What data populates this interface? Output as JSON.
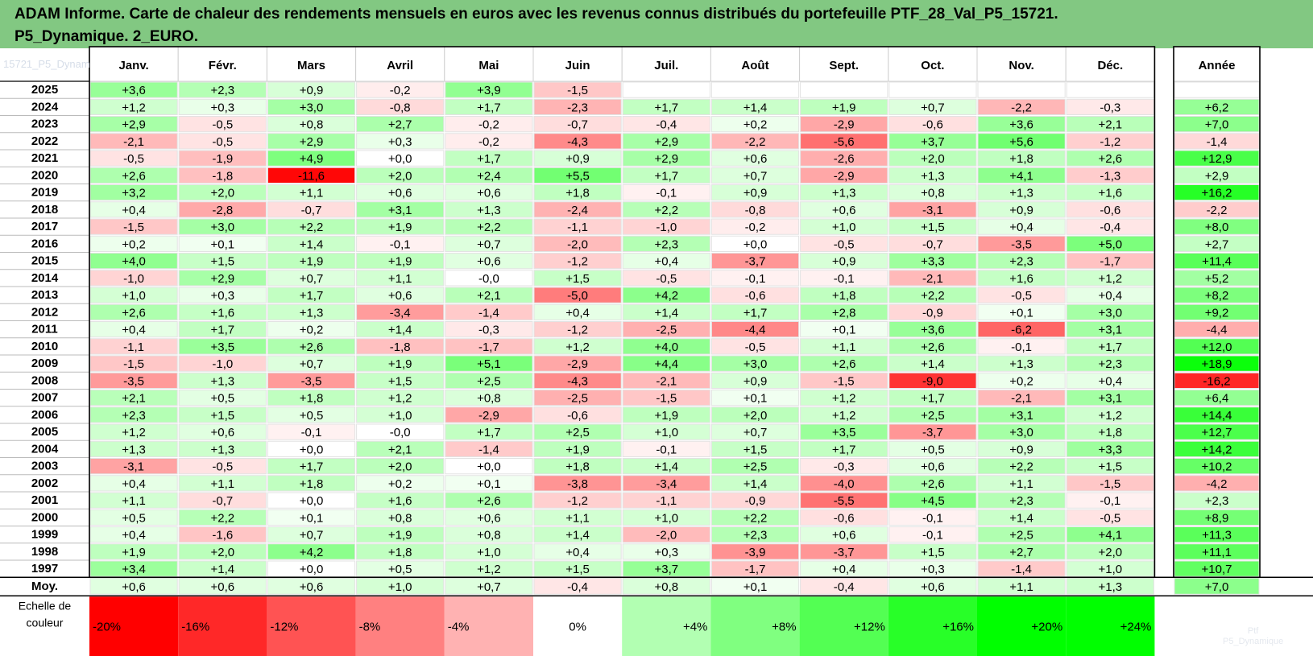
{
  "title": {
    "line1": "ADAM Informe. Carte de chaleur des rendements mensuels en euros avec les revenus connus distribués du portefeuille PTF_28_Val_P5_15721.",
    "line2": "P5_Dynamique. 2_EURO."
  },
  "watermark": "15721_P5_Dynam",
  "watermark2": [
    "Ptf",
    "P5_Dynamique"
  ],
  "chart_data": {
    "type": "heatmap",
    "columns": [
      "Janv.",
      "Févr.",
      "Mars",
      "Avril",
      "Mai",
      "Juin",
      "Juil.",
      "Août",
      "Sept.",
      "Oct.",
      "Nov.",
      "Déc."
    ],
    "annual_label": "Année",
    "rows": [
      {
        "year": "2025",
        "months": [
          "+3,6",
          "+2,3",
          "+0,9",
          "-0,2",
          "+3,9",
          "-1,5",
          "",
          "",
          "",
          "",
          "",
          ""
        ],
        "annual": ""
      },
      {
        "year": "2024",
        "months": [
          "+1,2",
          "+0,3",
          "+3,0",
          "-0,8",
          "+1,7",
          "-2,3",
          "+1,7",
          "+1,4",
          "+1,9",
          "+0,7",
          "-2,2",
          "-0,3"
        ],
        "annual": "+6,2"
      },
      {
        "year": "2023",
        "months": [
          "+2,9",
          "-0,5",
          "+0,8",
          "+2,7",
          "-0,2",
          "-0,7",
          "-0,4",
          "+0,2",
          "-2,9",
          "-0,6",
          "+3,6",
          "+2,1"
        ],
        "annual": "+7,0"
      },
      {
        "year": "2022",
        "months": [
          "-2,1",
          "-0,5",
          "+2,9",
          "+0,3",
          "-0,2",
          "-4,3",
          "+2,9",
          "-2,2",
          "-5,6",
          "+3,7",
          "+5,6",
          "-1,2"
        ],
        "annual": "-1,4"
      },
      {
        "year": "2021",
        "months": [
          "-0,5",
          "-1,9",
          "+4,9",
          "+0,0",
          "+1,7",
          "+0,9",
          "+2,9",
          "+0,6",
          "-2,6",
          "+2,0",
          "+1,8",
          "+2,6"
        ],
        "annual": "+12,9"
      },
      {
        "year": "2020",
        "months": [
          "+2,6",
          "-1,8",
          "-11,6",
          "+2,0",
          "+2,4",
          "+5,5",
          "+1,7",
          "+0,7",
          "-2,9",
          "+1,3",
          "+4,1",
          "-1,3"
        ],
        "annual": "+2,9"
      },
      {
        "year": "2019",
        "months": [
          "+3,2",
          "+2,0",
          "+1,1",
          "+0,6",
          "+0,6",
          "+1,8",
          "-0,1",
          "+0,9",
          "+1,3",
          "+0,8",
          "+1,3",
          "+1,6"
        ],
        "annual": "+16,2"
      },
      {
        "year": "2018",
        "months": [
          "+0,4",
          "-2,8",
          "-0,7",
          "+3,1",
          "+1,3",
          "-2,4",
          "+2,2",
          "-0,8",
          "+0,6",
          "-3,1",
          "+0,9",
          "-0,6"
        ],
        "annual": "-2,2"
      },
      {
        "year": "2017",
        "months": [
          "-1,5",
          "+3,0",
          "+2,2",
          "+1,9",
          "+2,2",
          "-1,1",
          "-1,0",
          "-0,2",
          "+1,0",
          "+1,5",
          "+0,4",
          "-0,4"
        ],
        "annual": "+8,0"
      },
      {
        "year": "2016",
        "months": [
          "+0,2",
          "+0,1",
          "+1,4",
          "-0,1",
          "+0,7",
          "-2,0",
          "+2,3",
          "+0,0",
          "-0,5",
          "-0,7",
          "-3,5",
          "+5,0"
        ],
        "annual": "+2,7"
      },
      {
        "year": "2015",
        "months": [
          "+4,0",
          "+1,5",
          "+1,9",
          "+1,9",
          "+0,6",
          "-1,2",
          "+0,4",
          "-3,7",
          "+0,9",
          "+3,3",
          "+2,3",
          "-1,7"
        ],
        "annual": "+11,4"
      },
      {
        "year": "2014",
        "months": [
          "-1,0",
          "+2,9",
          "+0,7",
          "+1,1",
          "-0,0",
          "+1,5",
          "-0,5",
          "-0,1",
          "-0,1",
          "-2,1",
          "+1,6",
          "+1,2"
        ],
        "annual": "+5,2"
      },
      {
        "year": "2013",
        "months": [
          "+1,0",
          "+0,3",
          "+1,7",
          "+0,6",
          "+2,1",
          "-5,0",
          "+4,2",
          "-0,6",
          "+1,8",
          "+2,2",
          "-0,5",
          "+0,4"
        ],
        "annual": "+8,2"
      },
      {
        "year": "2012",
        "months": [
          "+2,6",
          "+1,6",
          "+1,3",
          "-3,4",
          "-1,4",
          "+0,4",
          "+1,4",
          "+1,7",
          "+2,8",
          "-0,9",
          "+0,1",
          "+3,0"
        ],
        "annual": "+9,2"
      },
      {
        "year": "2011",
        "months": [
          "+0,4",
          "+1,7",
          "+0,2",
          "+1,4",
          "-0,3",
          "-1,2",
          "-2,5",
          "-4,4",
          "+0,1",
          "+3,6",
          "-6,2",
          "+3,1"
        ],
        "annual": "-4,4"
      },
      {
        "year": "2010",
        "months": [
          "-1,1",
          "+3,5",
          "+2,6",
          "-1,8",
          "-1,7",
          "+1,2",
          "+4,0",
          "-0,5",
          "+1,1",
          "+2,6",
          "-0,1",
          "+1,7"
        ],
        "annual": "+12,0"
      },
      {
        "year": "2009",
        "months": [
          "-1,5",
          "-1,0",
          "+0,7",
          "+1,9",
          "+5,1",
          "-2,9",
          "+4,4",
          "+3,0",
          "+2,6",
          "+1,4",
          "+1,3",
          "+2,3"
        ],
        "annual": "+18,9"
      },
      {
        "year": "2008",
        "months": [
          "-3,5",
          "+1,3",
          "-3,5",
          "+1,5",
          "+2,5",
          "-4,3",
          "-2,1",
          "+0,9",
          "-1,5",
          "-9,0",
          "+0,2",
          "+0,4"
        ],
        "annual": "-16,2"
      },
      {
        "year": "2007",
        "months": [
          "+2,1",
          "+0,5",
          "+1,8",
          "+1,2",
          "+0,8",
          "-2,5",
          "-1,5",
          "+0,1",
          "+1,2",
          "+1,7",
          "-2,1",
          "+3,1"
        ],
        "annual": "+6,4"
      },
      {
        "year": "2006",
        "months": [
          "+2,3",
          "+1,5",
          "+0,5",
          "+1,0",
          "-2,9",
          "-0,6",
          "+1,9",
          "+2,0",
          "+1,2",
          "+2,5",
          "+3,1",
          "+1,2"
        ],
        "annual": "+14,4"
      },
      {
        "year": "2005",
        "months": [
          "+1,2",
          "+0,6",
          "-0,1",
          "-0,0",
          "+1,7",
          "+2,5",
          "+1,0",
          "+0,7",
          "+3,5",
          "-3,7",
          "+3,0",
          "+1,8"
        ],
        "annual": "+12,7"
      },
      {
        "year": "2004",
        "months": [
          "+1,3",
          "+1,3",
          "+0,0",
          "+2,1",
          "-1,4",
          "+1,9",
          "-0,1",
          "+1,5",
          "+1,7",
          "+0,5",
          "+0,9",
          "+3,3"
        ],
        "annual": "+14,2"
      },
      {
        "year": "2003",
        "months": [
          "-3,1",
          "-0,5",
          "+1,7",
          "+2,0",
          "+0,0",
          "+1,8",
          "+1,4",
          "+2,5",
          "-0,3",
          "+0,6",
          "+2,2",
          "+1,5"
        ],
        "annual": "+10,2"
      },
      {
        "year": "2002",
        "months": [
          "+0,4",
          "+1,1",
          "+1,8",
          "+0,2",
          "+0,1",
          "-3,8",
          "-3,4",
          "+1,4",
          "-4,0",
          "+2,6",
          "+1,1",
          "-1,5"
        ],
        "annual": "-4,2"
      },
      {
        "year": "2001",
        "months": [
          "+1,1",
          "-0,7",
          "+0,0",
          "+1,6",
          "+2,6",
          "-1,2",
          "-1,1",
          "-0,9",
          "-5,5",
          "+4,5",
          "+2,3",
          "-0,1"
        ],
        "annual": "+2,3"
      },
      {
        "year": "2000",
        "months": [
          "+0,5",
          "+2,2",
          "+0,1",
          "+0,8",
          "+0,6",
          "+1,1",
          "+1,0",
          "+2,2",
          "-0,6",
          "-0,1",
          "+1,4",
          "-0,5"
        ],
        "annual": "+8,9"
      },
      {
        "year": "1999",
        "months": [
          "+0,4",
          "-1,6",
          "+0,7",
          "+1,9",
          "+0,8",
          "+1,4",
          "-2,0",
          "+2,3",
          "+0,6",
          "-0,1",
          "+2,5",
          "+4,1"
        ],
        "annual": "+11,3"
      },
      {
        "year": "1998",
        "months": [
          "+1,9",
          "+2,0",
          "+4,2",
          "+1,8",
          "+1,0",
          "+0,4",
          "+0,3",
          "-3,9",
          "-3,7",
          "+1,5",
          "+2,7",
          "+2,0"
        ],
        "annual": "+11,1"
      },
      {
        "year": "1997",
        "months": [
          "+3,4",
          "+1,4",
          "+0,0",
          "+0,5",
          "+1,2",
          "+1,5",
          "+3,7",
          "-1,7",
          "+0,4",
          "+0,3",
          "-1,4",
          "+1,0"
        ],
        "annual": "+10,7"
      }
    ],
    "average": {
      "label": "Moy.",
      "months": [
        "+0,6",
        "+0,6",
        "+0,6",
        "+1,0",
        "+0,7",
        "-0,4",
        "+0,8",
        "+0,1",
        "-0,4",
        "+0,6",
        "+1,1",
        "+1,3"
      ],
      "annual": "+7,0"
    },
    "scale": {
      "label_line1": "Echelle de",
      "label_line2": "couleur",
      "items": [
        {
          "label": "-20%",
          "value": -20
        },
        {
          "label": "-16%",
          "value": -16
        },
        {
          "label": "-12%",
          "value": -12
        },
        {
          "label": "-8%",
          "value": -8
        },
        {
          "label": "-4%",
          "value": -4
        },
        {
          "label": "0%",
          "value": 0
        },
        {
          "label": "+4%",
          "value": 4
        },
        {
          "label": "+8%",
          "value": 8
        },
        {
          "label": "+12%",
          "value": 12
        },
        {
          "label": "+16%",
          "value": 16
        },
        {
          "label": "+20%",
          "value": 20
        },
        {
          "label": "+24%",
          "value": 24
        }
      ]
    }
  }
}
